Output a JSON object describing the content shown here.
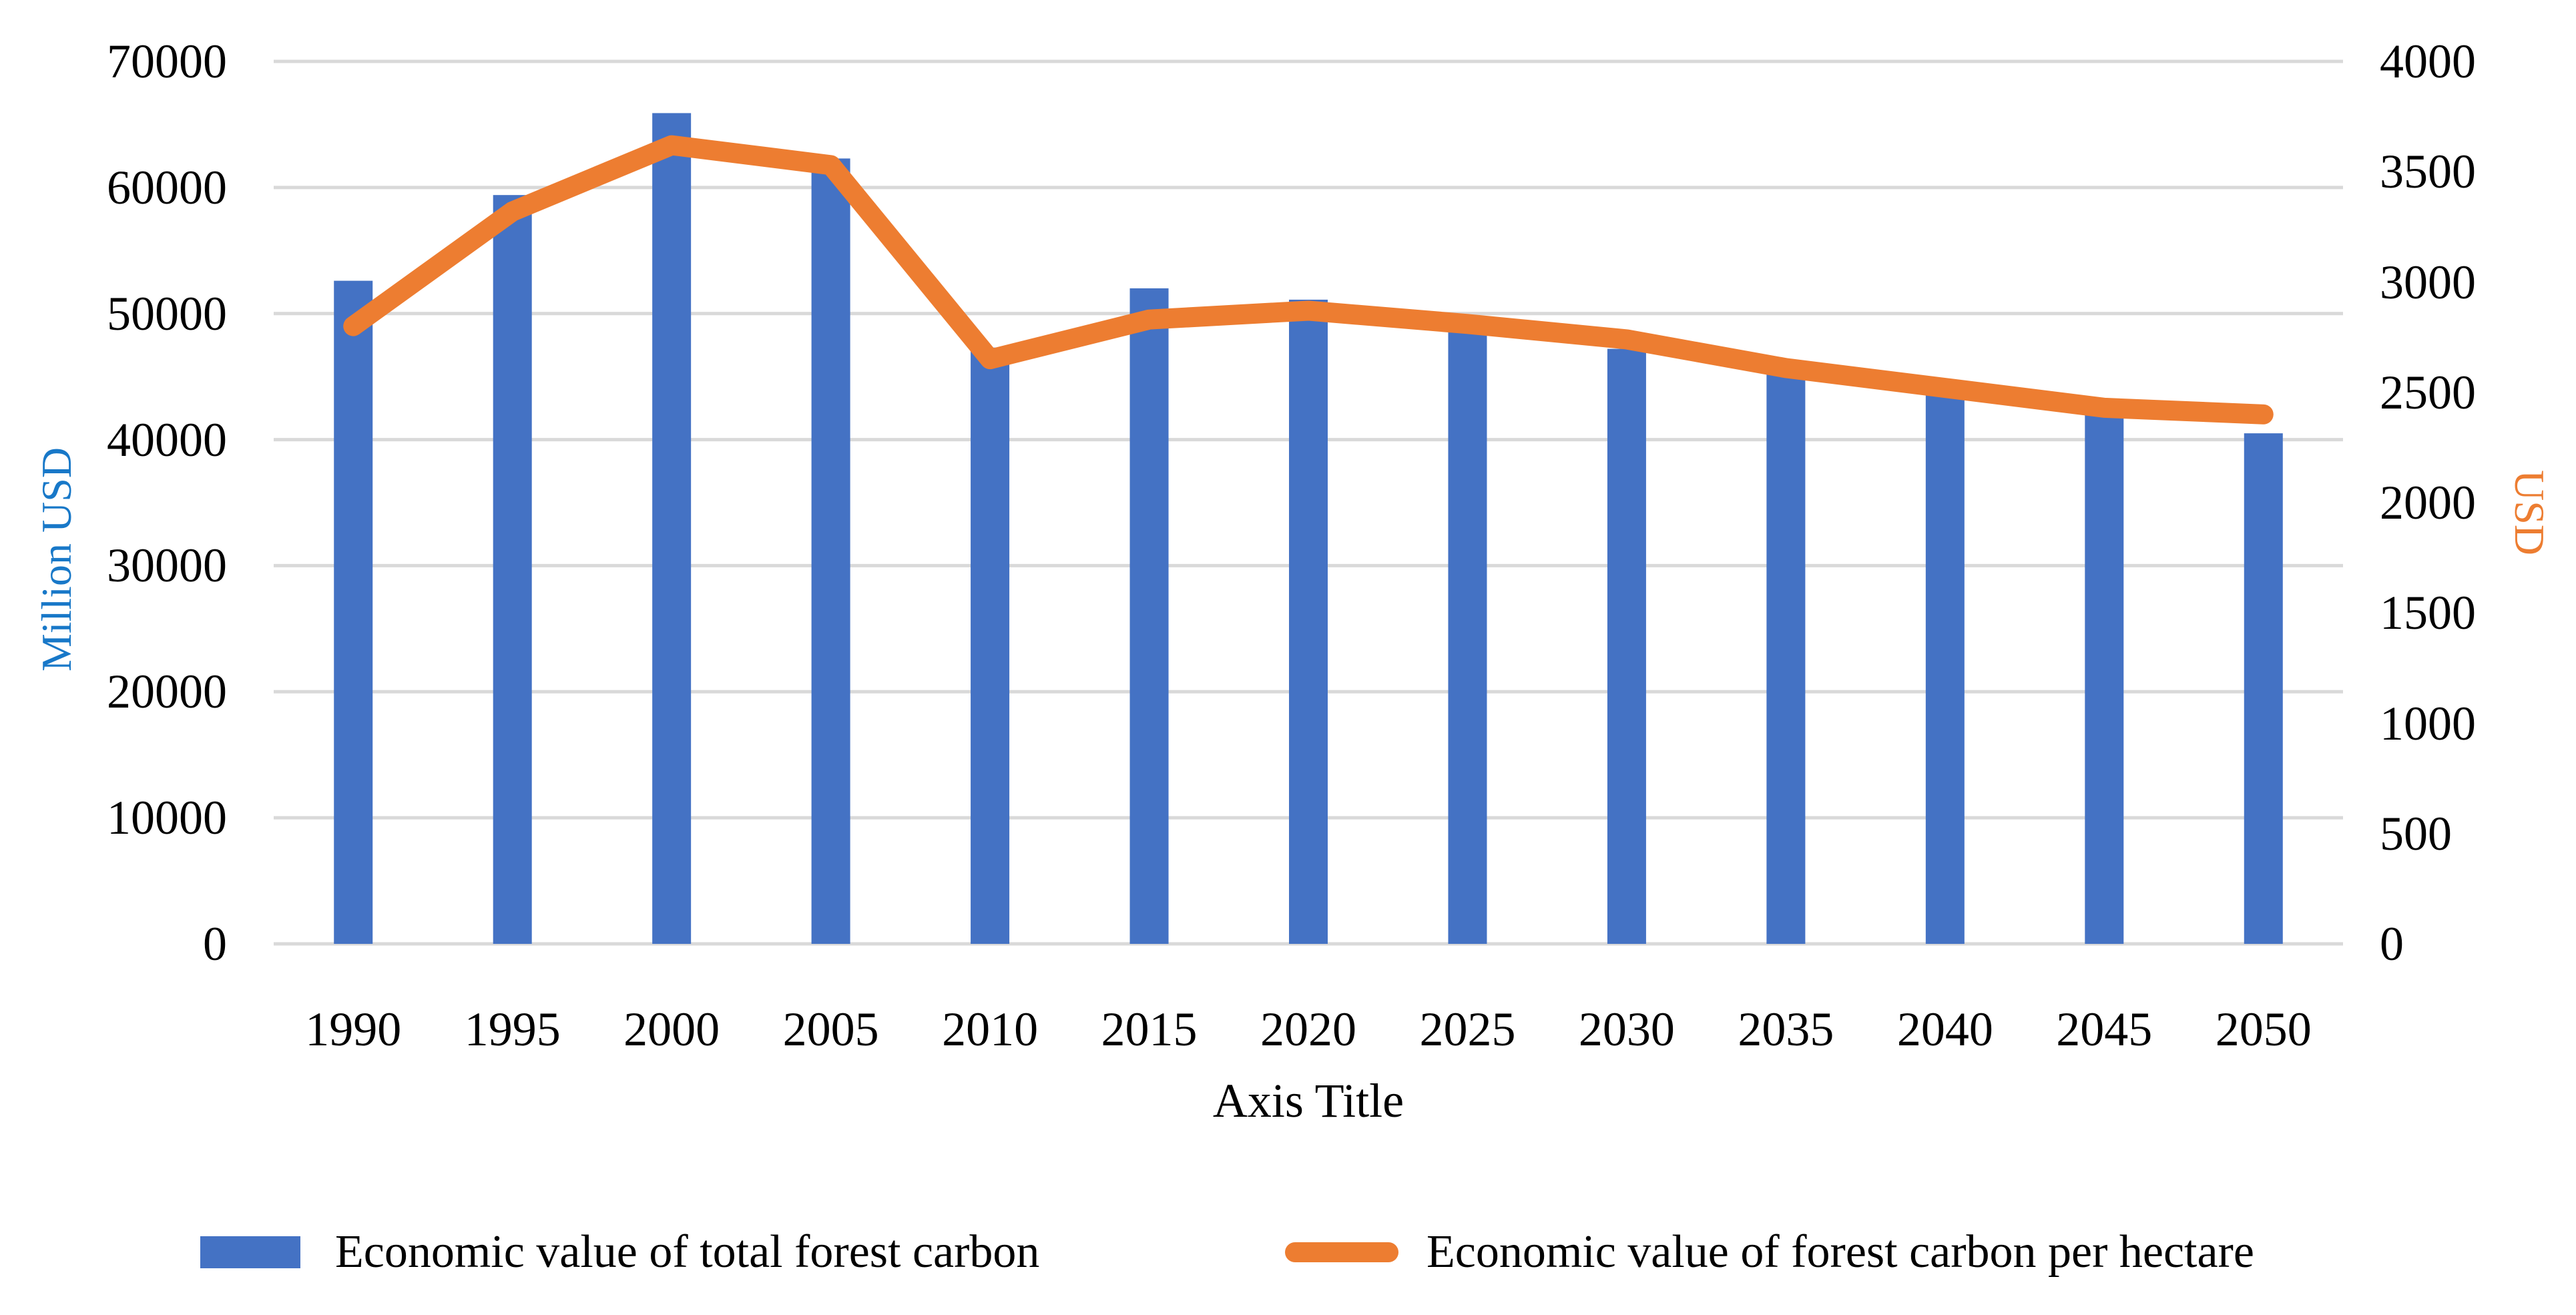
{
  "chart_data": {
    "type": "bar",
    "subtype": "dual-axis bar and line combo",
    "categories": [
      "1990",
      "1995",
      "2000",
      "2005",
      "2010",
      "2015",
      "2020",
      "2025",
      "2030",
      "2035",
      "2040",
      "2045",
      "2050"
    ],
    "series": [
      {
        "name": "Economic value of total forest carbon",
        "type": "bar",
        "axis": "left",
        "color": "#4472C4",
        "values": [
          52600,
          59400,
          65900,
          62300,
          47300,
          52000,
          51100,
          48600,
          47200,
          45700,
          44000,
          42300,
          40500
        ]
      },
      {
        "name": "Economic value of forest carbon per hectare",
        "type": "line",
        "axis": "right",
        "color": "#ED7D31",
        "values": [
          2800,
          3320,
          3620,
          3530,
          2650,
          2830,
          2870,
          2810,
          2740,
          2610,
          2520,
          2430,
          2400
        ]
      }
    ],
    "title": "",
    "xlabel": "Axis Title",
    "left_axis": {
      "title": "Million USD",
      "title_color": "#1878C8",
      "min": 0,
      "max": 70000,
      "step": 10000,
      "ticks": [
        "0",
        "10000",
        "20000",
        "30000",
        "40000",
        "50000",
        "60000",
        "70000"
      ]
    },
    "right_axis": {
      "title": "USD",
      "title_color": "#ED7D31",
      "min": 0,
      "max": 4000,
      "step": 500,
      "ticks": [
        "0",
        "500",
        "1000",
        "1500",
        "2000",
        "2500",
        "3000",
        "3500",
        "4000"
      ]
    },
    "x_axis": {
      "title": "Axis Title"
    },
    "grid": true,
    "gridline_color": "#D9D9D9",
    "background_color": "#FFFFFF",
    "tick_color": "#000000",
    "legend_position": "bottom"
  },
  "legend": {
    "items": [
      {
        "label": "Economic value of total forest carbon",
        "marker": "rect",
        "color": "#4472C4"
      },
      {
        "label": "Economic value of forest carbon per hectare",
        "marker": "line",
        "color": "#ED7D31"
      }
    ]
  }
}
